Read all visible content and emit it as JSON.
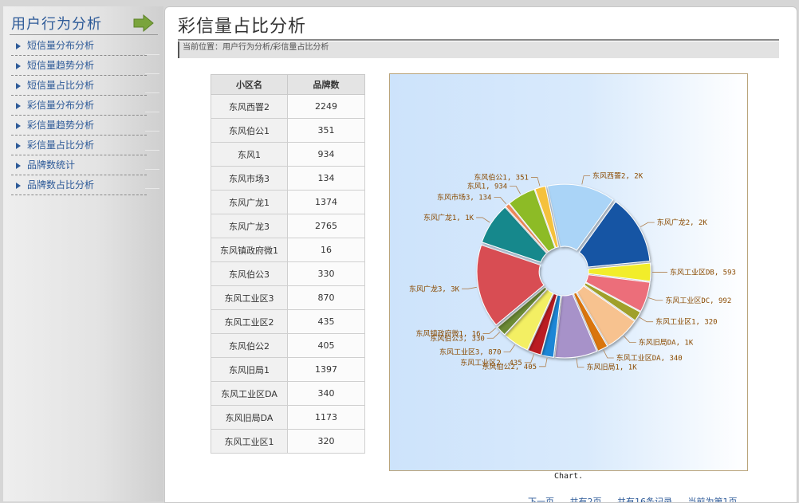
{
  "sidebar": {
    "title": "用户行为分析",
    "items": [
      {
        "label": "短信量分布分析"
      },
      {
        "label": "短信量趋势分析"
      },
      {
        "label": "短信量占比分析"
      },
      {
        "label": "彩信量分布分析"
      },
      {
        "label": "彩信量趋势分析"
      },
      {
        "label": "彩信量占比分析"
      },
      {
        "label": "品牌数统计"
      },
      {
        "label": "品牌数占比分析"
      }
    ]
  },
  "main": {
    "title": "彩信量占比分析",
    "breadcrumb": "当前位置：用户行为分析/彩信量占比分析"
  },
  "table": {
    "headers": [
      "小区名",
      "品牌数"
    ],
    "rows": [
      [
        "东风西罯2",
        "2249"
      ],
      [
        "东风伯公1",
        "351"
      ],
      [
        "东风1",
        "934"
      ],
      [
        "东风市场3",
        "134"
      ],
      [
        "东风广龙1",
        "1374"
      ],
      [
        "东风广龙3",
        "2765"
      ],
      [
        "东风镇政府微1",
        "16"
      ],
      [
        "东风伯公3",
        "330"
      ],
      [
        "东风工业区3",
        "870"
      ],
      [
        "东风工业区2",
        "435"
      ],
      [
        "东风伯公2",
        "405"
      ],
      [
        "东风旧局1",
        "1397"
      ],
      [
        "东风工业区DA",
        "340"
      ],
      [
        "东风旧局DA",
        "1173"
      ],
      [
        "东风工业区1",
        "320"
      ]
    ]
  },
  "chart_caption": "Chart.",
  "pager": {
    "prev": "下一页",
    "total_pages": "共有2页",
    "total_records": "共有16条记录",
    "current": "当前为第1页"
  },
  "chart_data": {
    "type": "pie",
    "title": "",
    "slices": [
      {
        "name": "东风西罯2",
        "value": 2249,
        "label": "东风西罯2, 2K",
        "color": "#aad4f7"
      },
      {
        "name": "东风广龙2",
        "value": 2300,
        "label": "东风广龙2, 2K",
        "color": "#1855a4"
      },
      {
        "name": "东风工业区DB",
        "value": 593,
        "label": "东风工业区DB, 593",
        "color": "#f2ed2a"
      },
      {
        "name": "东风工业区DC",
        "value": 992,
        "label": "东风工业区DC, 992",
        "color": "#ec6e7a"
      },
      {
        "name": "东风工业区1",
        "value": 320,
        "label": "东风工业区1, 320",
        "color": "#a0a02a"
      },
      {
        "name": "东风旧局DA",
        "value": 1173,
        "label": "东风旧局DA, 1K",
        "color": "#f7c28f"
      },
      {
        "name": "东风工业区DA",
        "value": 340,
        "label": "东风工业区DA, 340",
        "color": "#d9740e"
      },
      {
        "name": "东风旧局1",
        "value": 1397,
        "label": "东风旧局1, 1K",
        "color": "#a792c9"
      },
      {
        "name": "东风伯公2",
        "value": 405,
        "label": "东风伯公2, 405",
        "color": "#1a86d6"
      },
      {
        "name": "东风工业区2",
        "value": 435,
        "label": "东风工业区2, 435",
        "color": "#bb1c24"
      },
      {
        "name": "东风工业区3",
        "value": 870,
        "label": "东风工业区3, 870",
        "color": "#f3ef63"
      },
      {
        "name": "东风伯公3",
        "value": 330,
        "label": "东风伯公3, 330",
        "color": "#6c8a36"
      },
      {
        "name": "东风镇政府微1",
        "value": 16,
        "label": "东风镇政府微1, 16",
        "color": "#2b5ea8"
      },
      {
        "name": "东风广龙3",
        "value": 2765,
        "label": "东风广龙3, 3K",
        "color": "#d84e53"
      },
      {
        "name": "东风广龙1",
        "value": 1374,
        "label": "东风广龙1, 1K",
        "color": "#15888c"
      },
      {
        "name": "东风市场3",
        "value": 134,
        "label": "东风市场3, 134",
        "color": "#f28a5a"
      },
      {
        "name": "东风1",
        "value": 934,
        "label": "东风1, 934",
        "color": "#8dbb26"
      },
      {
        "name": "东风伯公1",
        "value": 351,
        "label": "东风伯公1, 351",
        "color": "#f5c13d"
      }
    ],
    "label_color": "#8a4a00"
  }
}
